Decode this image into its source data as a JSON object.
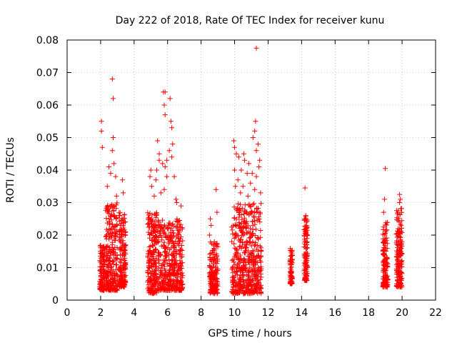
{
  "chart_data": {
    "type": "scatter",
    "title": "Day 222 of 2018, Rate Of TEC Index for receiver kunu",
    "xlabel": "GPS time / hours",
    "ylabel": "ROTI / TECUs",
    "xlim": [
      0,
      22
    ],
    "ylim": [
      0,
      0.08
    ],
    "x_ticks": [
      0,
      2,
      4,
      6,
      8,
      10,
      12,
      14,
      16,
      18,
      20,
      22
    ],
    "y_ticks": [
      0,
      0.01,
      0.02,
      0.03,
      0.04,
      0.05,
      0.06,
      0.07,
      0.08
    ],
    "x_tick_labels": [
      "0",
      "2",
      "4",
      "6",
      "8",
      "10",
      "12",
      "14",
      "16",
      "18",
      "20",
      "22"
    ],
    "y_tick_labels": [
      "0",
      "0.01",
      "0.02",
      "0.03",
      "0.04",
      "0.05",
      "0.06",
      "0.07",
      "0.08"
    ],
    "grid": true,
    "marker": "+",
    "series_color": "#ff0000",
    "clusters": [
      {
        "x": [
          1.95,
          2.25
        ],
        "y": [
          0.003,
          0.017
        ]
      },
      {
        "x": [
          2.3,
          3.0
        ],
        "y": [
          0.003,
          0.03
        ]
      },
      {
        "x": [
          3.1,
          3.5
        ],
        "y": [
          0.004,
          0.027
        ]
      },
      {
        "x": [
          4.8,
          5.35
        ],
        "y": [
          0.002,
          0.027
        ]
      },
      {
        "x": [
          5.4,
          6.9
        ],
        "y": [
          0.003,
          0.025
        ]
      },
      {
        "x": [
          8.5,
          9.0
        ],
        "y": [
          0.002,
          0.018
        ]
      },
      {
        "x": [
          9.8,
          11.6
        ],
        "y": [
          0.002,
          0.03
        ]
      },
      {
        "x": [
          13.3,
          13.45
        ],
        "y": [
          0.005,
          0.016
        ]
      },
      {
        "x": [
          14.15,
          14.35
        ],
        "y": [
          0.006,
          0.027
        ]
      },
      {
        "x": [
          18.85,
          19.15
        ],
        "y": [
          0.004,
          0.024
        ]
      },
      {
        "x": [
          19.65,
          20.0
        ],
        "y": [
          0.004,
          0.029
        ]
      }
    ],
    "points": [
      {
        "x": 2.05,
        "y": 0.055
      },
      {
        "x": 2.05,
        "y": 0.052
      },
      {
        "x": 2.1,
        "y": 0.047
      },
      {
        "x": 2.7,
        "y": 0.068
      },
      {
        "x": 2.75,
        "y": 0.062
      },
      {
        "x": 2.75,
        "y": 0.05
      },
      {
        "x": 2.7,
        "y": 0.046
      },
      {
        "x": 2.8,
        "y": 0.042
      },
      {
        "x": 2.6,
        "y": 0.039
      },
      {
        "x": 2.5,
        "y": 0.041
      },
      {
        "x": 2.9,
        "y": 0.038
      },
      {
        "x": 2.4,
        "y": 0.035
      },
      {
        "x": 3.3,
        "y": 0.037
      },
      {
        "x": 3.35,
        "y": 0.033
      },
      {
        "x": 2.95,
        "y": 0.032
      },
      {
        "x": 5.75,
        "y": 0.064
      },
      {
        "x": 5.85,
        "y": 0.064
      },
      {
        "x": 6.15,
        "y": 0.062
      },
      {
        "x": 5.8,
        "y": 0.06
      },
      {
        "x": 5.85,
        "y": 0.057
      },
      {
        "x": 6.2,
        "y": 0.055
      },
      {
        "x": 6.25,
        "y": 0.053
      },
      {
        "x": 5.4,
        "y": 0.049
      },
      {
        "x": 6.3,
        "y": 0.048
      },
      {
        "x": 6.1,
        "y": 0.046
      },
      {
        "x": 5.5,
        "y": 0.045
      },
      {
        "x": 5.5,
        "y": 0.043
      },
      {
        "x": 6.25,
        "y": 0.044
      },
      {
        "x": 5.95,
        "y": 0.043
      },
      {
        "x": 5.0,
        "y": 0.04
      },
      {
        "x": 5.35,
        "y": 0.04
      },
      {
        "x": 5.7,
        "y": 0.042
      },
      {
        "x": 5.85,
        "y": 0.041
      },
      {
        "x": 4.95,
        "y": 0.038
      },
      {
        "x": 5.3,
        "y": 0.037
      },
      {
        "x": 5.95,
        "y": 0.038
      },
      {
        "x": 6.4,
        "y": 0.038
      },
      {
        "x": 5.05,
        "y": 0.035
      },
      {
        "x": 5.8,
        "y": 0.034
      },
      {
        "x": 6.55,
        "y": 0.03
      },
      {
        "x": 6.8,
        "y": 0.029
      },
      {
        "x": 5.2,
        "y": 0.032
      },
      {
        "x": 5.6,
        "y": 0.033
      },
      {
        "x": 6.5,
        "y": 0.031
      },
      {
        "x": 8.9,
        "y": 0.034
      },
      {
        "x": 8.95,
        "y": 0.027
      },
      {
        "x": 8.55,
        "y": 0.025
      },
      {
        "x": 8.6,
        "y": 0.023
      },
      {
        "x": 8.5,
        "y": 0.02
      },
      {
        "x": 11.3,
        "y": 0.0775
      },
      {
        "x": 11.25,
        "y": 0.055
      },
      {
        "x": 11.2,
        "y": 0.052
      },
      {
        "x": 11.1,
        "y": 0.05
      },
      {
        "x": 11.4,
        "y": 0.048
      },
      {
        "x": 11.3,
        "y": 0.046
      },
      {
        "x": 9.95,
        "y": 0.049
      },
      {
        "x": 10.0,
        "y": 0.047
      },
      {
        "x": 10.1,
        "y": 0.045
      },
      {
        "x": 10.55,
        "y": 0.045
      },
      {
        "x": 10.6,
        "y": 0.043
      },
      {
        "x": 10.85,
        "y": 0.042
      },
      {
        "x": 10.25,
        "y": 0.044
      },
      {
        "x": 11.5,
        "y": 0.043
      },
      {
        "x": 11.45,
        "y": 0.041
      },
      {
        "x": 10.0,
        "y": 0.04
      },
      {
        "x": 10.4,
        "y": 0.04
      },
      {
        "x": 10.75,
        "y": 0.039
      },
      {
        "x": 11.05,
        "y": 0.039
      },
      {
        "x": 11.3,
        "y": 0.038
      },
      {
        "x": 10.2,
        "y": 0.037
      },
      {
        "x": 10.95,
        "y": 0.036
      },
      {
        "x": 10.05,
        "y": 0.035
      },
      {
        "x": 10.5,
        "y": 0.035
      },
      {
        "x": 11.2,
        "y": 0.034
      },
      {
        "x": 11.55,
        "y": 0.033
      },
      {
        "x": 10.35,
        "y": 0.033
      },
      {
        "x": 10.8,
        "y": 0.032
      },
      {
        "x": 14.2,
        "y": 0.0345
      },
      {
        "x": 14.25,
        "y": 0.026
      },
      {
        "x": 19.0,
        "y": 0.0405
      },
      {
        "x": 18.95,
        "y": 0.031
      },
      {
        "x": 18.9,
        "y": 0.027
      },
      {
        "x": 19.85,
        "y": 0.0325
      },
      {
        "x": 19.9,
        "y": 0.031
      },
      {
        "x": 19.85,
        "y": 0.03
      }
    ]
  }
}
